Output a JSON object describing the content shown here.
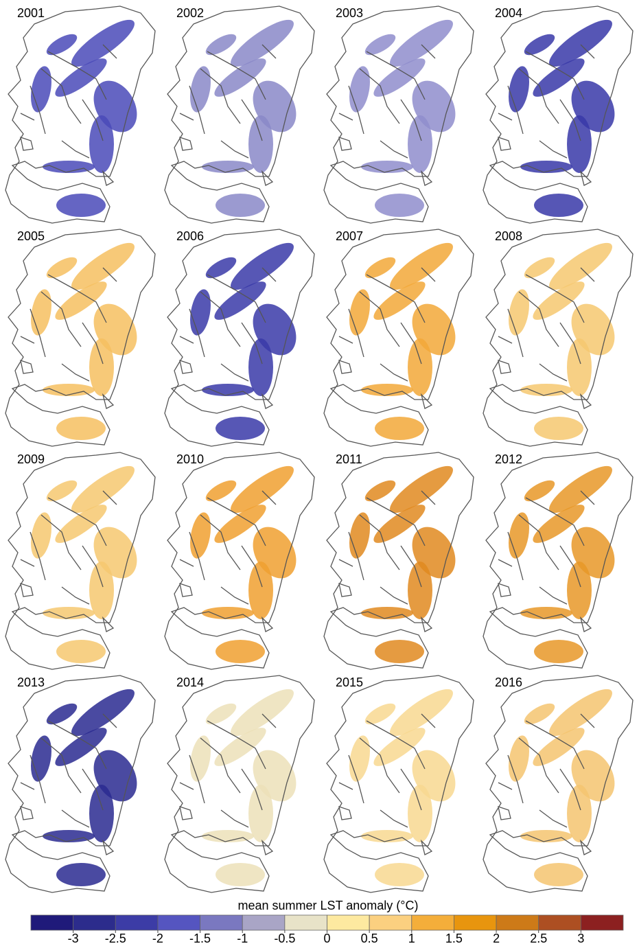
{
  "panels": [
    {
      "year": "2001",
      "color": "#4a4ab8"
    },
    {
      "year": "2002",
      "color": "#8a88c8"
    },
    {
      "year": "2003",
      "color": "#8f8dcc"
    },
    {
      "year": "2004",
      "color": "#3838a8"
    },
    {
      "year": "2005",
      "color": "#f6c060"
    },
    {
      "year": "2006",
      "color": "#3a3aa8"
    },
    {
      "year": "2007",
      "color": "#f2a838"
    },
    {
      "year": "2008",
      "color": "#f6c870"
    },
    {
      "year": "2009",
      "color": "#f6c870"
    },
    {
      "year": "2010",
      "color": "#f0a030"
    },
    {
      "year": "2011",
      "color": "#e08a20"
    },
    {
      "year": "2012",
      "color": "#e89828"
    },
    {
      "year": "2013",
      "color": "#2a2a90"
    },
    {
      "year": "2014",
      "color": "#ece0b8"
    },
    {
      "year": "2015",
      "color": "#f8d890"
    },
    {
      "year": "2016",
      "color": "#f4c470"
    }
  ],
  "colorbar": {
    "title": "mean summer LST anomaly (°C)",
    "colors": [
      "#1f1a7a",
      "#2c2c8c",
      "#3c3ca6",
      "#5555c0",
      "#7a78c0",
      "#a9a5c6",
      "#e8e3c8",
      "#fde9a0",
      "#fbd080",
      "#f4ae3a",
      "#e8950e",
      "#cd7a18",
      "#ad4f22",
      "#8c2020"
    ],
    "lim": [
      -3.5,
      3.5
    ],
    "ticks": [
      -3,
      -2.5,
      -2,
      -1.5,
      -1,
      -0.5,
      0,
      0.5,
      1,
      1.5,
      2,
      2.5,
      3
    ]
  }
}
